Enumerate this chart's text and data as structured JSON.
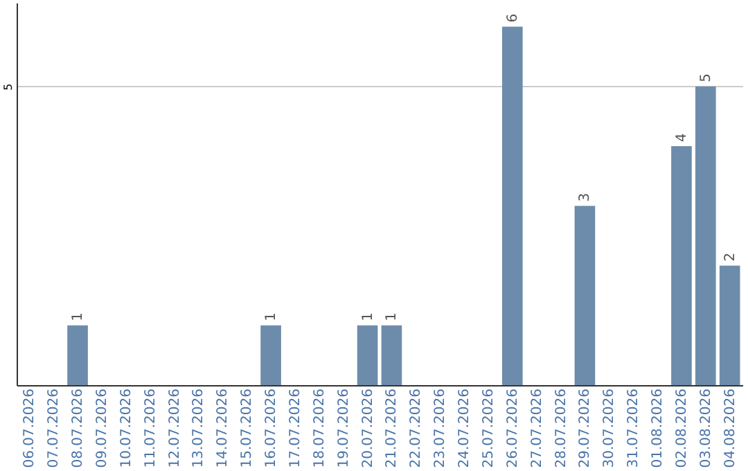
{
  "chart_data": {
    "type": "bar",
    "categories": [
      "06.07.2026",
      "07.07.2026",
      "08.07.2026",
      "09.07.2026",
      "10.07.2026",
      "11.07.2026",
      "12.07.2026",
      "13.07.2026",
      "14.07.2026",
      "15.07.2026",
      "16.07.2026",
      "17.07.2026",
      "18.07.2026",
      "19.07.2026",
      "20.07.2026",
      "21.07.2026",
      "22.07.2026",
      "23.07.2026",
      "24.07.2026",
      "25.07.2026",
      "26.07.2026",
      "27.07.2026",
      "28.07.2026",
      "29.07.2026",
      "30.07.2026",
      "31.07.2026",
      "01.08.2026",
      "02.08.2026",
      "03.08.2026",
      "04.08.2026"
    ],
    "values": [
      0,
      0,
      1,
      0,
      0,
      0,
      0,
      0,
      0,
      0,
      1,
      0,
      0,
      0,
      1,
      1,
      0,
      0,
      0,
      0,
      6,
      0,
      0,
      3,
      0,
      0,
      0,
      4,
      5,
      2
    ],
    "value_labels": [
      null,
      null,
      "1",
      null,
      null,
      null,
      null,
      null,
      null,
      null,
      "1",
      null,
      null,
      null,
      "1",
      "1",
      null,
      null,
      null,
      null,
      "6",
      null,
      null,
      "3",
      null,
      null,
      null,
      "4",
      "5",
      "2"
    ],
    "color": "#6d8cab",
    "ylim": [
      0,
      6.4
    ],
    "yticks": [
      5
    ],
    "grid": "y"
  }
}
